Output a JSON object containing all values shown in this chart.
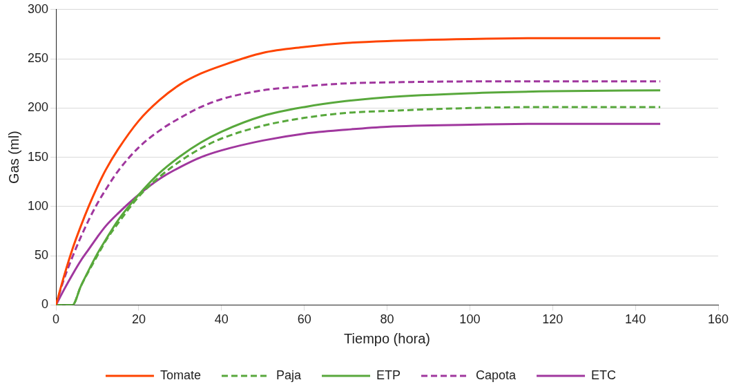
{
  "chart_data": {
    "type": "line",
    "xlabel": "Tiempo (hora)",
    "ylabel": "Gas (ml)",
    "x": [
      0,
      2,
      4,
      6,
      8,
      10,
      12,
      15,
      20,
      25,
      30,
      35,
      40,
      50,
      60,
      70,
      80,
      100,
      120,
      146
    ],
    "xlim": [
      0,
      160
    ],
    "xticks": [
      0,
      20,
      40,
      60,
      80,
      100,
      120,
      140,
      160
    ],
    "ylim": [
      0,
      300
    ],
    "yticks": [
      0,
      50,
      100,
      150,
      200,
      250,
      300
    ],
    "grid": "y",
    "legend": "bottom",
    "marker": "none",
    "series": [
      {
        "name": "Tomate",
        "color": "#fe4400",
        "line_style": "solid",
        "values": [
          0,
          30,
          57,
          80,
          101,
          120,
          137,
          158,
          187,
          208,
          224,
          235,
          243,
          256,
          262,
          266,
          268,
          270,
          271,
          271
        ]
      },
      {
        "name": "Paja",
        "color": "#58a83c",
        "line_style": "dashed",
        "values": [
          0,
          0,
          0,
          19,
          35,
          50,
          65,
          83,
          110,
          130,
          146,
          159,
          169,
          182,
          190,
          195,
          197,
          200,
          201,
          201
        ]
      },
      {
        "name": "ETP",
        "color": "#58a83c",
        "line_style": "solid",
        "values": [
          0,
          0,
          0,
          19,
          36,
          52,
          66,
          86,
          112,
          134,
          151,
          165,
          176,
          192,
          201,
          207,
          211,
          215,
          217,
          218
        ]
      },
      {
        "name": "Capota",
        "color": "#a0379e",
        "line_style": "dashed",
        "values": [
          0,
          27,
          49,
          69,
          87,
          103,
          117,
          136,
          160,
          177,
          190,
          201,
          209,
          218,
          222,
          225,
          226,
          227,
          227,
          227
        ]
      },
      {
        "name": "ETC",
        "color": "#a0379e",
        "line_style": "solid",
        "values": [
          0,
          16,
          31,
          45,
          57,
          69,
          80,
          93,
          112,
          128,
          140,
          150,
          157,
          167,
          174,
          178,
          181,
          183,
          184,
          184
        ]
      }
    ]
  }
}
